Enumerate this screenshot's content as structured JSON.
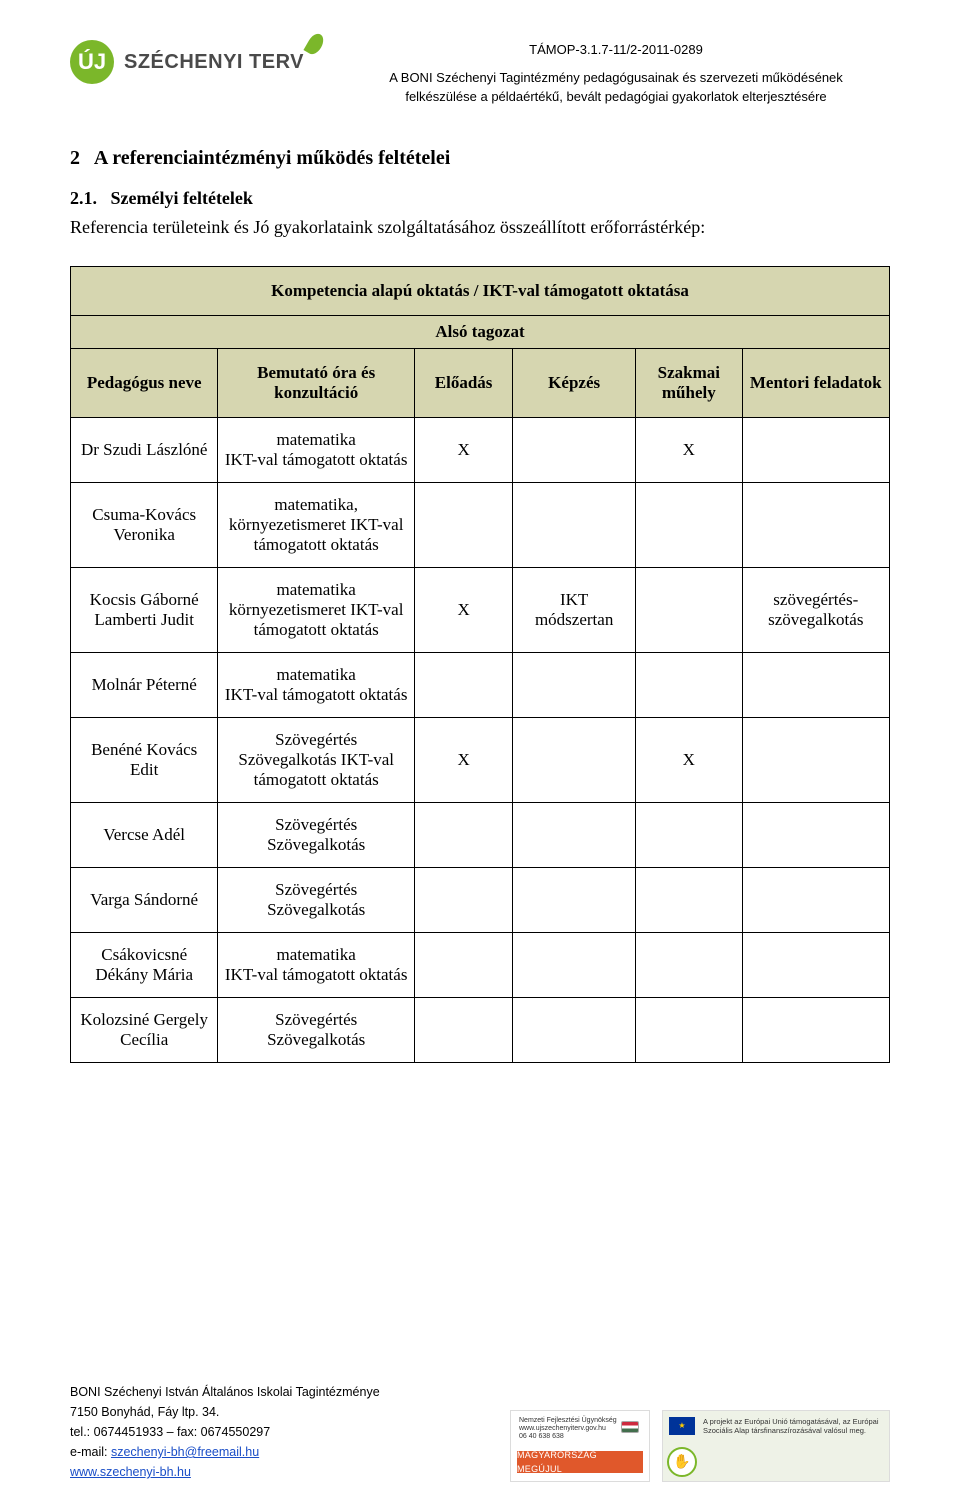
{
  "header": {
    "logo_uj": "ÚJ",
    "logo_name": "SZÉCHENYI TERV",
    "code": "TÁMOP-3.1.7-11/2-2011-0289",
    "line1": "A BONI Széchenyi Tagintézmény pedagógusainak és szervezeti működésének",
    "line2": "felkészülése a példaértékű, bevált pedagógiai gyakorlatok elterjesztésére"
  },
  "section": {
    "num": "2",
    "title": "A referenciaintézményi működés feltételei",
    "sub_num": "2.1.",
    "sub_title": "Személyi feltételek",
    "intro": "Referencia területeink és Jó gyakorlataink szolgáltatásához összeállított erőforrástérkép:"
  },
  "table": {
    "title": "Kompetencia alapú oktatás / IKT-val támogatott oktatása",
    "subtitle": "Alsó tagozat",
    "cols": [
      "Pedagógus neve",
      "Bemutató óra és konzultáció",
      "Előadás",
      "Képzés",
      "Szakmai műhely",
      "Mentori feladatok"
    ],
    "rows": [
      {
        "name": "Dr Szudi Lászlóné",
        "topic": "matematika\nIKT-val támogatott oktatás",
        "eloadas": "X",
        "kepzes": "",
        "szakmai": "X",
        "mentori": ""
      },
      {
        "name": "Csuma-Kovács Veronika",
        "topic": "matematika, környezetismeret IKT-val támogatott oktatás",
        "eloadas": "",
        "kepzes": "",
        "szakmai": "",
        "mentori": ""
      },
      {
        "name": "Kocsis Gáborné Lamberti Judit",
        "topic": "matematika környezetismeret IKT-val támogatott oktatás",
        "eloadas": "X",
        "kepzes": "IKT módszertan",
        "szakmai": "",
        "mentori": "szövegértés-szövegalkotás"
      },
      {
        "name": "Molnár Péterné",
        "topic": "matematika\nIKT-val támogatott oktatás",
        "eloadas": "",
        "kepzes": "",
        "szakmai": "",
        "mentori": ""
      },
      {
        "name": "Benéné Kovács Edit",
        "topic": "Szövegértés Szövegalkotás IKT-val támogatott oktatás",
        "eloadas": "X",
        "kepzes": "",
        "szakmai": "X",
        "mentori": ""
      },
      {
        "name": "Vercse Adél",
        "topic": "Szövegértés Szövegalkotás",
        "eloadas": "",
        "kepzes": "",
        "szakmai": "",
        "mentori": ""
      },
      {
        "name": "Varga Sándorné",
        "topic": "Szövegértés Szövegalkotás",
        "eloadas": "",
        "kepzes": "",
        "szakmai": "",
        "mentori": ""
      },
      {
        "name": "Csákovicsné Dékány Mária",
        "topic": "matematika\nIKT-val támogatott oktatás",
        "eloadas": "",
        "kepzes": "",
        "szakmai": "",
        "mentori": ""
      },
      {
        "name": "Kolozsiné Gergely Cecília",
        "topic": "Szövegértés Szövegalkotás",
        "eloadas": "",
        "kepzes": "",
        "szakmai": "",
        "mentori": ""
      }
    ]
  },
  "footer": {
    "line1": "BONI Széchenyi István Általános Iskolai Tagintézménye",
    "line2": "7150 Bonyhád, Fáy ltp. 34.",
    "line3": "tel.: 0674451933 – fax: 0674550297",
    "email_label": "e-mail: ",
    "email": "szechenyi-bh@freemail.hu",
    "www": "www.szechenyi-bh.hu",
    "nfu1": "Nemzeti Fejlesztési Ügynökség",
    "nfu2": "www.ujszechenyiterv.gov.hu",
    "nfu3": "06 40 638 638",
    "badge": "MAGYARORSZÁG MEGÚJUL",
    "eu1": "A projekt az Európai Unió támogatásával, az Európai",
    "eu2": "Szociális Alap társfinanszírozásával valósul meg."
  },
  "colors": {
    "header_bg": "#d6d6b0",
    "accent": "#7bb72a",
    "link": "#1a4ec7"
  }
}
